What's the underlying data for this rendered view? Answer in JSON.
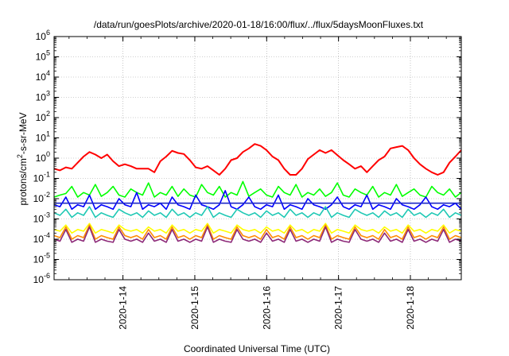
{
  "chart_data": {
    "type": "line",
    "title": "/data/run/goesPlots/archive/2020-01-18/16:00/flux/../flux/5daysMoonFluxes.txt",
    "xlabel": "Coordinated Universal Time (UTC)",
    "ylabel": "protons/cm²-s-sr-MeV",
    "yscale": "log",
    "ylim": [
      1e-06,
      1000000.0
    ],
    "xlim": [
      "2020-01-13 01:00",
      "2020-01-18 17:00"
    ],
    "grid": true,
    "legend": "none",
    "x_ticks": [
      "2020-1-14",
      "2020-1-15",
      "2020-1-16",
      "2020-1-17",
      "2020-1-18"
    ],
    "y_ticks": [
      {
        "base": "10",
        "exp": "6"
      },
      {
        "base": "10",
        "exp": "5"
      },
      {
        "base": "10",
        "exp": "4"
      },
      {
        "base": "10",
        "exp": "3"
      },
      {
        "base": "10",
        "exp": "2"
      },
      {
        "base": "10",
        "exp": "1"
      },
      {
        "base": "10",
        "exp": "0"
      },
      {
        "base": "10",
        "exp": "-1"
      },
      {
        "base": "10",
        "exp": "-2"
      },
      {
        "base": "10",
        "exp": "-3"
      },
      {
        "base": "10",
        "exp": "-4"
      },
      {
        "base": "10",
        "exp": "-5"
      },
      {
        "base": "10",
        "exp": "-6"
      }
    ],
    "series": [
      {
        "color": "#ff0000",
        "values": [
          0.3,
          0.25,
          0.35,
          0.3,
          0.6,
          1.2,
          2.0,
          1.5,
          1.0,
          1.5,
          0.7,
          0.4,
          0.5,
          0.4,
          0.3,
          0.3,
          0.3,
          0.2,
          0.7,
          1.2,
          2.3,
          1.8,
          1.6,
          0.8,
          0.35,
          0.3,
          0.4,
          0.25,
          0.15,
          0.3,
          0.8,
          1.0,
          2.0,
          3.0,
          5.0,
          4.0,
          2.5,
          1.2,
          0.8,
          0.3,
          0.15,
          0.15,
          0.3,
          0.9,
          1.5,
          2.5,
          1.8,
          2.5,
          1.4,
          0.8,
          0.5,
          0.3,
          0.4,
          0.2,
          0.4,
          0.8,
          1.2,
          3.0,
          3.5,
          4.0,
          2.5,
          1.0,
          0.5,
          0.3,
          0.2,
          0.15,
          0.2,
          0.6,
          1.2,
          2.5
        ]
      },
      {
        "color": "#00ff00",
        "values": [
          0.012,
          0.015,
          0.018,
          0.04,
          0.012,
          0.02,
          0.015,
          0.05,
          0.013,
          0.02,
          0.04,
          0.015,
          0.012,
          0.03,
          0.02,
          0.015,
          0.06,
          0.012,
          0.02,
          0.015,
          0.04,
          0.013,
          0.03,
          0.015,
          0.012,
          0.05,
          0.02,
          0.015,
          0.04,
          0.012,
          0.02,
          0.015,
          0.07,
          0.013,
          0.02,
          0.03,
          0.015,
          0.012,
          0.04,
          0.02,
          0.015,
          0.05,
          0.012,
          0.02,
          0.015,
          0.03,
          0.013,
          0.02,
          0.06,
          0.015,
          0.012,
          0.03,
          0.02,
          0.015,
          0.04,
          0.012,
          0.02,
          0.015,
          0.05,
          0.013,
          0.02,
          0.03,
          0.015,
          0.012,
          0.04,
          0.02,
          0.015,
          0.03,
          0.012,
          0.02
        ]
      },
      {
        "color": "#0000ff",
        "values": [
          0.005,
          0.004,
          0.012,
          0.003,
          0.005,
          0.004,
          0.015,
          0.003,
          0.005,
          0.004,
          0.003,
          0.01,
          0.005,
          0.004,
          0.02,
          0.003,
          0.005,
          0.004,
          0.006,
          0.003,
          0.012,
          0.005,
          0.004,
          0.003,
          0.015,
          0.005,
          0.004,
          0.003,
          0.005,
          0.025,
          0.004,
          0.003,
          0.005,
          0.012,
          0.004,
          0.003,
          0.005,
          0.004,
          0.015,
          0.003,
          0.005,
          0.004,
          0.003,
          0.01,
          0.005,
          0.004,
          0.003,
          0.005,
          0.012,
          0.004,
          0.003,
          0.005,
          0.004,
          0.015,
          0.003,
          0.005,
          0.004,
          0.003,
          0.01,
          0.005,
          0.004,
          0.003,
          0.005,
          0.012,
          0.004,
          0.003,
          0.005,
          0.004,
          0.006,
          0.003
        ]
      },
      {
        "color": "#1e28c8",
        "values": [
          0.006,
          0.006,
          0.006,
          0.006,
          0.006,
          0.006,
          0.006,
          0.006,
          0.006,
          0.006,
          0.006,
          0.006,
          0.006,
          0.006,
          0.006,
          0.006,
          0.006,
          0.006,
          0.006,
          0.006,
          0.006,
          0.006,
          0.006,
          0.006,
          0.006,
          0.006,
          0.006,
          0.006,
          0.006,
          0.006,
          0.006,
          0.006,
          0.006,
          0.006,
          0.006,
          0.006,
          0.006,
          0.006,
          0.006,
          0.006,
          0.006,
          0.006,
          0.006,
          0.006,
          0.006,
          0.006,
          0.006,
          0.006,
          0.006,
          0.006,
          0.006,
          0.006,
          0.006,
          0.006,
          0.006,
          0.006,
          0.006,
          0.006,
          0.006,
          0.006,
          0.006,
          0.006,
          0.006,
          0.006,
          0.006,
          0.006,
          0.006,
          0.006,
          0.006,
          0.006
        ]
      },
      {
        "color": "#1ec8b4",
        "values": [
          0.002,
          0.0015,
          0.003,
          0.0012,
          0.002,
          0.0015,
          0.004,
          0.0012,
          0.002,
          0.0015,
          0.0012,
          0.003,
          0.002,
          0.0015,
          0.002,
          0.0012,
          0.0025,
          0.0015,
          0.002,
          0.0012,
          0.003,
          0.0015,
          0.002,
          0.0012,
          0.002,
          0.0015,
          0.004,
          0.0012,
          0.002,
          0.0015,
          0.0012,
          0.003,
          0.002,
          0.0015,
          0.002,
          0.0012,
          0.0025,
          0.0015,
          0.002,
          0.0012,
          0.003,
          0.0015,
          0.002,
          0.0012,
          0.002,
          0.0015,
          0.004,
          0.0012,
          0.002,
          0.0015,
          0.0012,
          0.003,
          0.002,
          0.0015,
          0.002,
          0.0012,
          0.0025,
          0.0015,
          0.002,
          0.0012,
          0.003,
          0.0015,
          0.002,
          0.0012,
          0.002,
          0.0015,
          0.003,
          0.0012,
          0.002,
          0.0015
        ]
      },
      {
        "color": "#ffff00",
        "values": [
          0.0003,
          0.00025,
          0.0005,
          0.0002,
          0.0003,
          0.00025,
          0.0006,
          0.0002,
          0.0003,
          0.00025,
          0.0002,
          0.0005,
          0.0003,
          0.00025,
          0.0003,
          0.0002,
          0.0004,
          0.00025,
          0.0003,
          0.0002,
          0.0005,
          0.00025,
          0.0003,
          0.0002,
          0.0003,
          0.00025,
          0.0006,
          0.0002,
          0.0003,
          0.00025,
          0.0002,
          0.0005,
          0.0003,
          0.00025,
          0.0003,
          0.0002,
          0.0004,
          0.00025,
          0.0003,
          0.0002,
          0.0005,
          0.00025,
          0.0003,
          0.0002,
          0.0003,
          0.00025,
          0.0006,
          0.0002,
          0.0003,
          0.00025,
          0.0002,
          0.0005,
          0.0003,
          0.00025,
          0.0003,
          0.0002,
          0.0004,
          0.00025,
          0.0003,
          0.0002,
          0.0005,
          0.00025,
          0.0003,
          0.0002,
          0.0003,
          0.00025,
          0.0005,
          0.0002,
          0.0003,
          0.00025
        ]
      },
      {
        "color": "#ff8c00",
        "values": [
          0.00015,
          0.00012,
          0.0004,
          0.0001,
          0.00015,
          0.00012,
          0.0005,
          0.0001,
          0.00015,
          0.00012,
          0.0001,
          0.0004,
          0.00015,
          0.00012,
          0.00015,
          0.0001,
          0.0003,
          0.00012,
          0.00015,
          0.0001,
          0.0004,
          0.00012,
          0.00015,
          0.0001,
          0.00015,
          0.00012,
          0.0005,
          0.0001,
          0.00015,
          0.00012,
          0.0001,
          0.0004,
          0.00015,
          0.00012,
          0.00015,
          0.0001,
          0.0003,
          0.00012,
          0.00015,
          0.0001,
          0.0004,
          0.00012,
          0.00015,
          0.0001,
          0.00015,
          0.00012,
          0.0005,
          0.0001,
          0.00015,
          0.00012,
          0.0001,
          0.0004,
          0.00015,
          0.00012,
          0.00015,
          0.0001,
          0.0003,
          0.00012,
          0.00015,
          0.0001,
          0.0004,
          0.00012,
          0.00015,
          0.0001,
          0.00015,
          0.00012,
          0.0004,
          0.0001,
          0.00015,
          0.00012
        ]
      },
      {
        "color": "#8c2878",
        "values": [
          0.0001,
          8e-05,
          0.0003,
          7e-05,
          0.0001,
          8e-05,
          0.0004,
          7e-05,
          0.0001,
          8e-05,
          7e-05,
          0.0003,
          0.0001,
          8e-05,
          0.0001,
          7e-05,
          0.0002,
          8e-05,
          0.0001,
          7e-05,
          0.0003,
          8e-05,
          0.0001,
          7e-05,
          0.0001,
          8e-05,
          0.0004,
          7e-05,
          0.0001,
          8e-05,
          7e-05,
          0.0003,
          0.0001,
          8e-05,
          0.0001,
          7e-05,
          0.0002,
          8e-05,
          0.0001,
          7e-05,
          0.0003,
          8e-05,
          0.0001,
          7e-05,
          0.0001,
          8e-05,
          0.0004,
          7e-05,
          0.0001,
          8e-05,
          7e-05,
          0.0003,
          0.0001,
          8e-05,
          0.0001,
          7e-05,
          0.0002,
          8e-05,
          0.0001,
          7e-05,
          0.0003,
          8e-05,
          0.0001,
          7e-05,
          0.0001,
          8e-05,
          0.0003,
          7e-05,
          0.0001,
          8e-05
        ]
      }
    ]
  }
}
